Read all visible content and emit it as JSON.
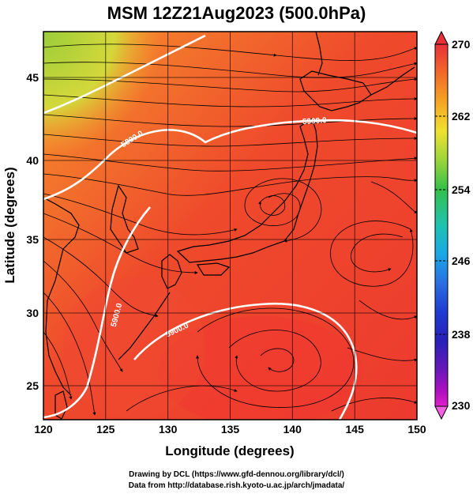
{
  "title": "MSM 12Z21Aug2023 (500.0hPa)",
  "axes": {
    "xlabel": "Longitude (degrees)",
    "ylabel": "Latitude  (degrees)",
    "x_ticks": [
      "120",
      "125",
      "130",
      "135",
      "140",
      "145",
      "150"
    ],
    "y_ticks": [
      "25",
      "30",
      "35",
      "40",
      "45"
    ]
  },
  "colorbar": {
    "labels": [
      "270",
      "262",
      "254",
      "246",
      "238",
      "230"
    ],
    "colors": [
      "#e8303a",
      "#f26a2a",
      "#f5a623",
      "#f0e130",
      "#9bd53a",
      "#35c04a",
      "#1fc2b0",
      "#1aa8e6",
      "#2a6fe0",
      "#1f3bd0",
      "#2820b8",
      "#6a18b8",
      "#b010c0",
      "#e020c8",
      "#f060e0"
    ]
  },
  "contours": [
    {
      "label": "5800.0"
    },
    {
      "label": "5900.0"
    },
    {
      "label": "5900.0"
    },
    {
      "label": "5900.0"
    }
  ],
  "credits": {
    "line1": "Drawing by DCL (https://www.gfd-dennou.org/library/dcl/)",
    "line2": "Data from http://database.rish.kyoto-u.ac.jp/arch/jmadata/"
  }
}
